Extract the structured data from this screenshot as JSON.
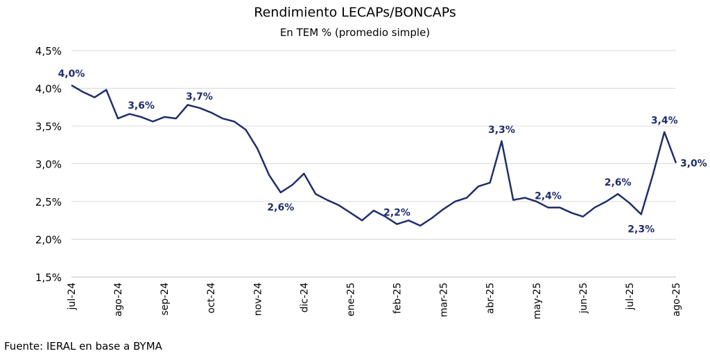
{
  "chart_data": {
    "type": "line",
    "title": "Rendimiento LECAPs/BONCAPs",
    "subtitle": "En TEM % (promedio simple)",
    "source": "Fuente: IERAL en base a BYMA",
    "categories": [
      "jul-24",
      null,
      null,
      null,
      "ago-24",
      null,
      null,
      null,
      "sep-24",
      null,
      null,
      null,
      "oct-24",
      null,
      null,
      null,
      "nov-24",
      null,
      null,
      null,
      "dic-24",
      null,
      null,
      null,
      "ene-25",
      null,
      null,
      null,
      "feb-25",
      null,
      null,
      null,
      "mar-25",
      null,
      null,
      null,
      "abr-25",
      null,
      null,
      null,
      "may-25",
      null,
      null,
      null,
      "jun-25",
      null,
      null,
      null,
      "jul-25",
      null,
      null,
      null,
      "ago-25"
    ],
    "series": [
      {
        "name": "TEM",
        "color": "#1f2d6b",
        "values": [
          4.04,
          3.95,
          3.88,
          3.98,
          3.6,
          3.66,
          3.62,
          3.56,
          3.62,
          3.6,
          3.78,
          3.74,
          3.68,
          3.6,
          3.56,
          3.45,
          3.2,
          2.85,
          2.62,
          2.72,
          2.87,
          2.6,
          2.52,
          2.45,
          2.35,
          2.25,
          2.38,
          2.3,
          2.2,
          2.25,
          2.18,
          2.28,
          2.4,
          2.5,
          2.55,
          2.7,
          2.75,
          3.3,
          2.52,
          2.55,
          2.5,
          2.42,
          2.42,
          2.35,
          2.3,
          2.42,
          2.5,
          2.6,
          2.48,
          2.33,
          2.85,
          3.42,
          3.01
        ],
        "value_labels": [
          "4,0%",
          null,
          null,
          null,
          null,
          null,
          "3,6%",
          null,
          null,
          null,
          null,
          "3,7%",
          null,
          null,
          null,
          null,
          null,
          null,
          "2,6%",
          null,
          null,
          null,
          null,
          null,
          null,
          null,
          null,
          null,
          "2,2%",
          null,
          null,
          null,
          null,
          null,
          null,
          null,
          null,
          "3,3%",
          null,
          null,
          null,
          "2,4%",
          null,
          null,
          null,
          null,
          null,
          "2,6%",
          null,
          "2,3%",
          null,
          "3,4%",
          "3,0%"
        ]
      }
    ],
    "ylim": [
      1.5,
      4.5
    ],
    "yticks": [
      {
        "value": 1.5,
        "label": "1,5%"
      },
      {
        "value": 2.0,
        "label": "2,0%"
      },
      {
        "value": 2.5,
        "label": "2,5%"
      },
      {
        "value": 3.0,
        "label": "3,0%"
      },
      {
        "value": 3.5,
        "label": "3,5%"
      },
      {
        "value": 4.0,
        "label": "4,0%"
      },
      {
        "value": 4.5,
        "label": "4,5%"
      }
    ],
    "grid": true
  }
}
